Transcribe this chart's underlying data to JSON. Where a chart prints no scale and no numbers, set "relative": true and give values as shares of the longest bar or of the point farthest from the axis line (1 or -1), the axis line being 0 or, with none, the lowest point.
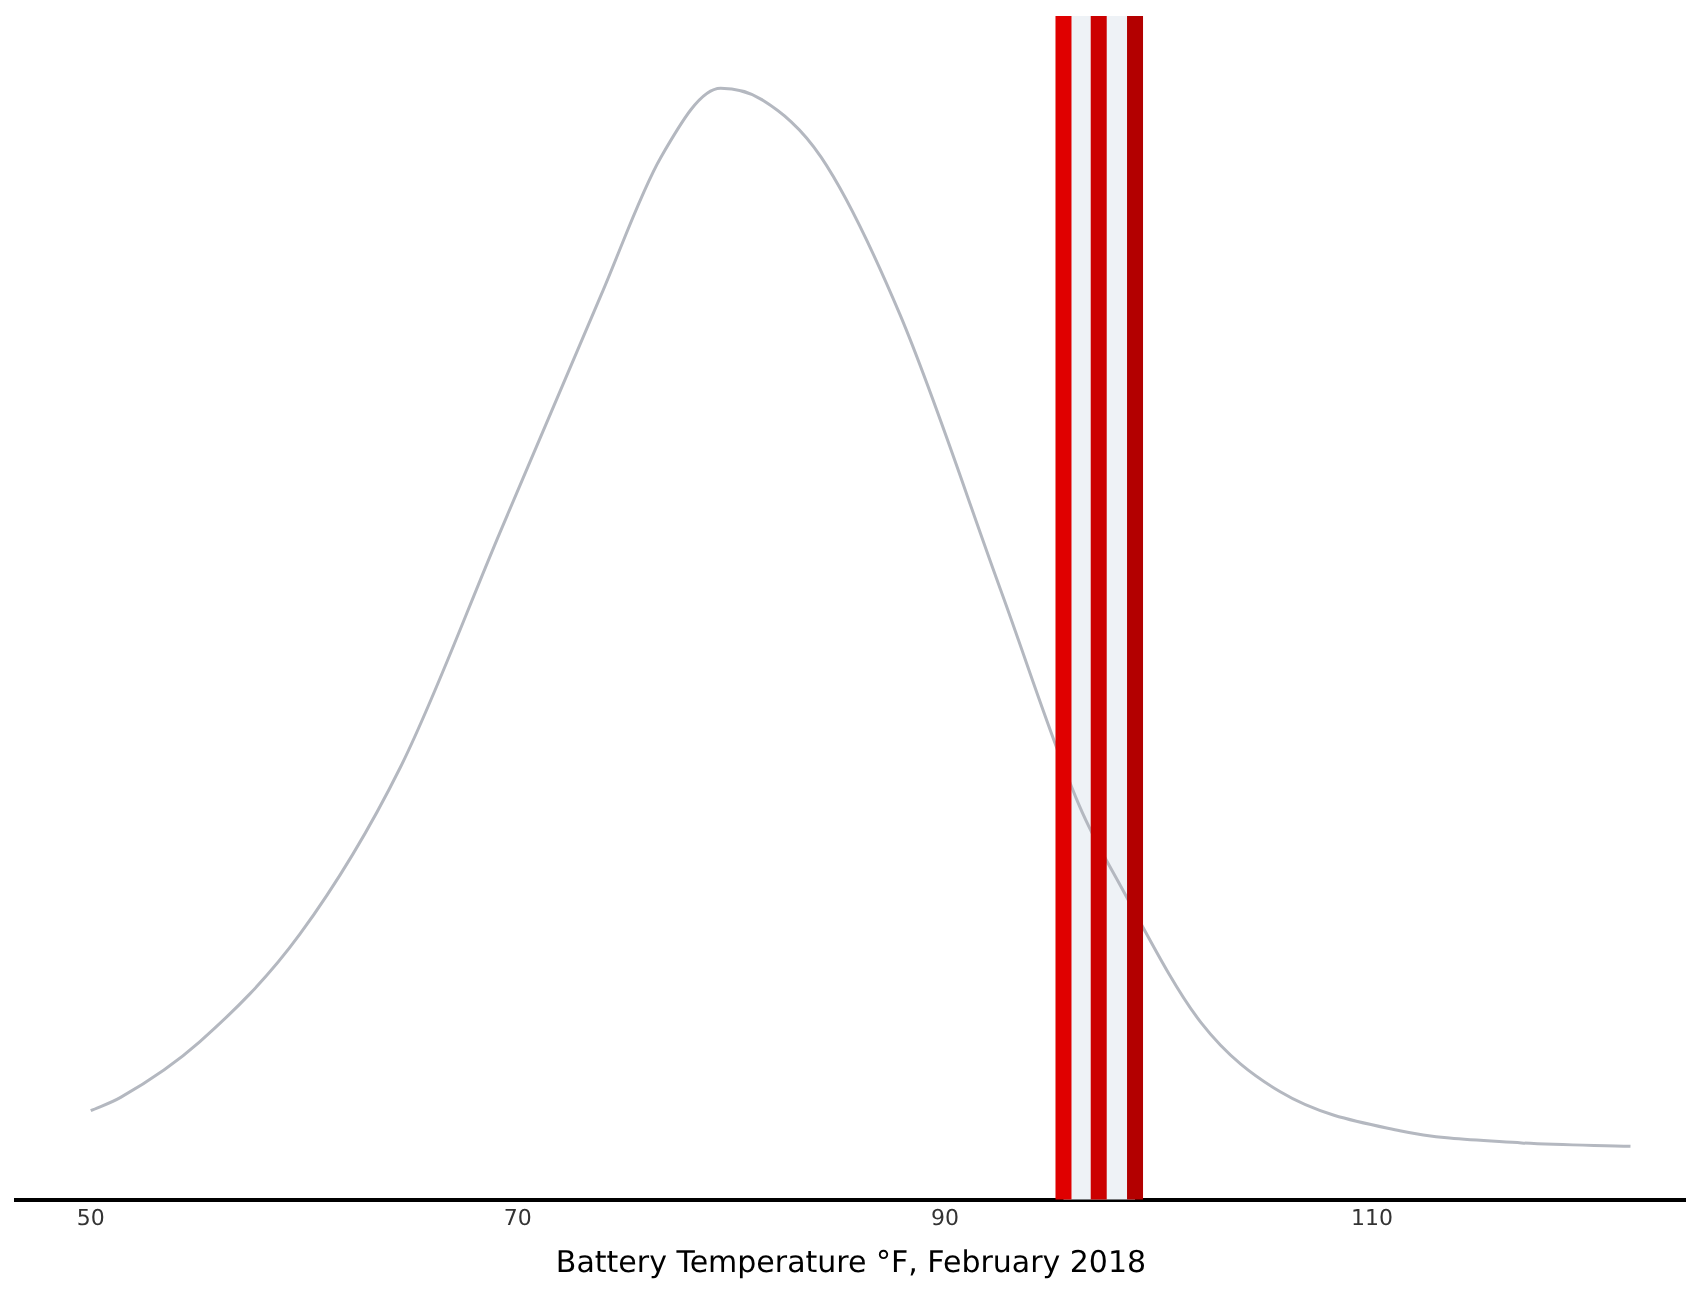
{
  "chart_data": {
    "type": "line",
    "xlabel": "Battery Temperature °F, February 2018",
    "relative": true,
    "series": [
      {
        "color": "#b4b8c0",
        "x": [
          50,
          51.4,
          55.1,
          59.8,
          64.5,
          69.2,
          73.9,
          76.7,
          79.5,
          81.4,
          84.2,
          87.9,
          92.6,
          96.3,
          98.2,
          102,
          105.7,
          111.3,
          117,
          122.1
        ],
        "values": [
          0.08,
          0.092,
          0.142,
          0.239,
          0.389,
          0.602,
          0.814,
          0.938,
          1,
          0.99,
          0.938,
          0.796,
          0.549,
          0.354,
          0.283,
          0.159,
          0.097,
          0.062,
          0.051,
          0.048
        ]
      }
    ],
    "xlim": [
      46.5,
      124.7
    ],
    "xticks": [
      50,
      70,
      90,
      110
    ],
    "grid": false,
    "legend": false,
    "marker": "none",
    "line_style": "solid",
    "ref_lines": [
      {
        "axis": "x",
        "value": 95.55,
        "color": "#e00000"
      },
      {
        "axis": "x",
        "value": 97.2,
        "color": "#cc0000"
      },
      {
        "axis": "x",
        "value": 98.9,
        "color": "#b30000"
      }
    ],
    "bands": [
      {
        "axis": "x",
        "from": 95.55,
        "to": 98.9,
        "color": "#eef2f6"
      }
    ]
  }
}
